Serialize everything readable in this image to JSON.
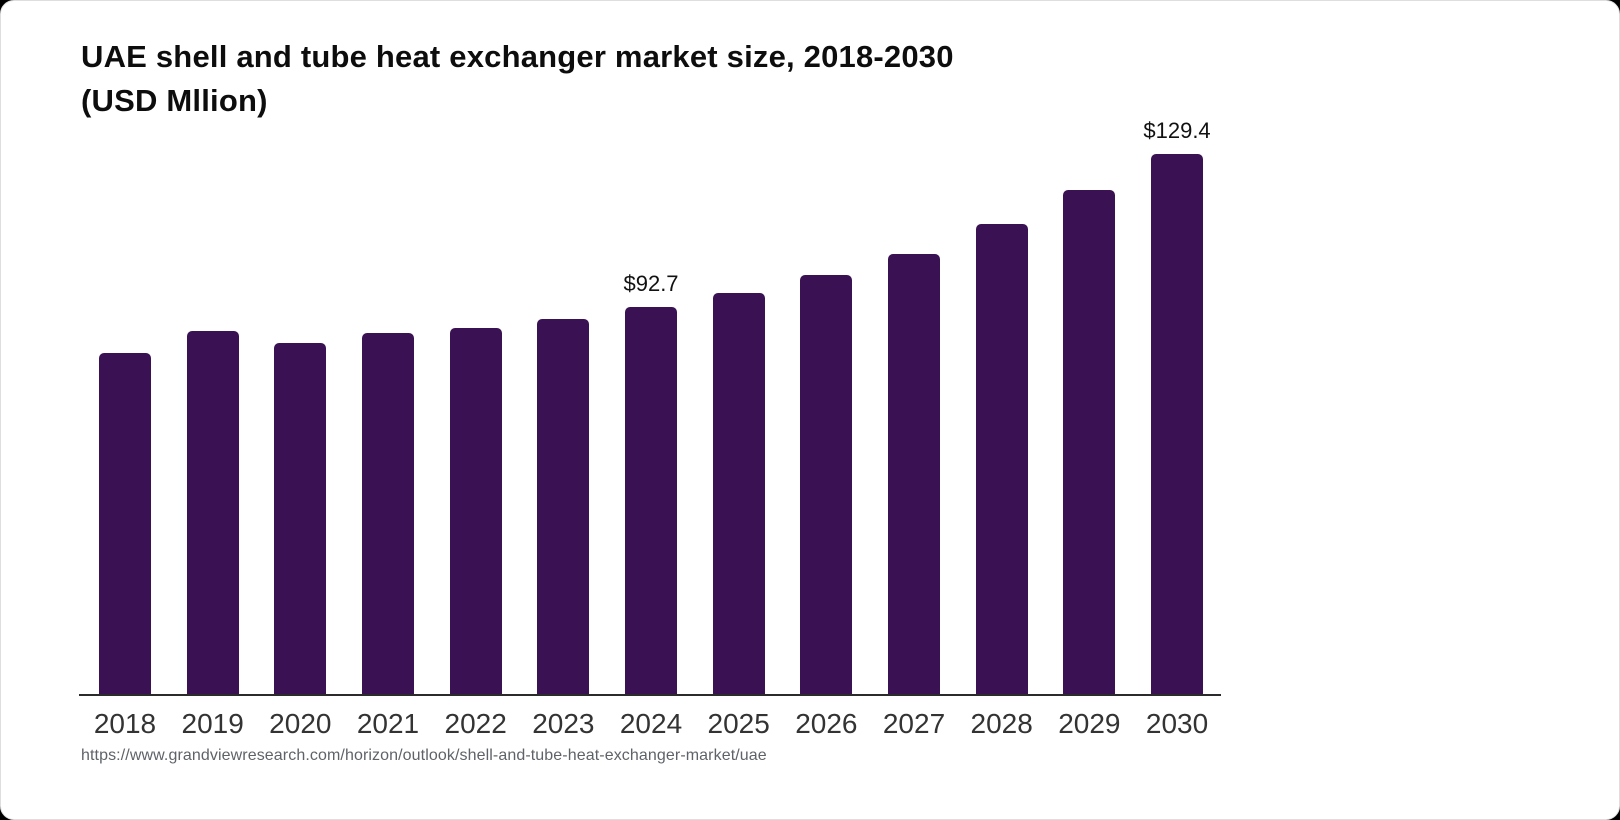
{
  "title": {
    "line1": "UAE shell and tube heat exchanger market size, 2018-2030",
    "line2": "(USD Mllion)"
  },
  "source": {
    "url": "https://www.grandviewresearch.com/horizon/outlook/shell-and-tube-heat-exchanger-market/uae"
  },
  "colors": {
    "bar": "#3A1152",
    "axis": "#2b2b2b",
    "title_text": "#0d0d0d",
    "year_label_text": "#333333",
    "value_label_text": "#111111",
    "source_text": "#5f6368",
    "card_background": "#ffffff"
  },
  "chart_data": {
    "type": "bar",
    "title": "UAE shell and tube heat exchanger market size, 2018-2030 (USD Mllion)",
    "categories": [
      "2018",
      "2019",
      "2020",
      "2021",
      "2022",
      "2023",
      "2024",
      "2025",
      "2026",
      "2027",
      "2028",
      "2029",
      "2030"
    ],
    "values": [
      81.6,
      87.1,
      84.0,
      86.4,
      87.6,
      89.8,
      92.7,
      96.2,
      100.3,
      105.4,
      112.6,
      120.7,
      129.4
    ],
    "data_labels": {
      "2024": "$92.7",
      "2030": "$129.4"
    },
    "unit": "USD Million",
    "xlabel": "",
    "ylabel": "",
    "ylim": [
      0,
      140
    ],
    "grid": false,
    "legend": false,
    "bar_color": "#3A1152",
    "axis_color": "#2b2b2b"
  }
}
